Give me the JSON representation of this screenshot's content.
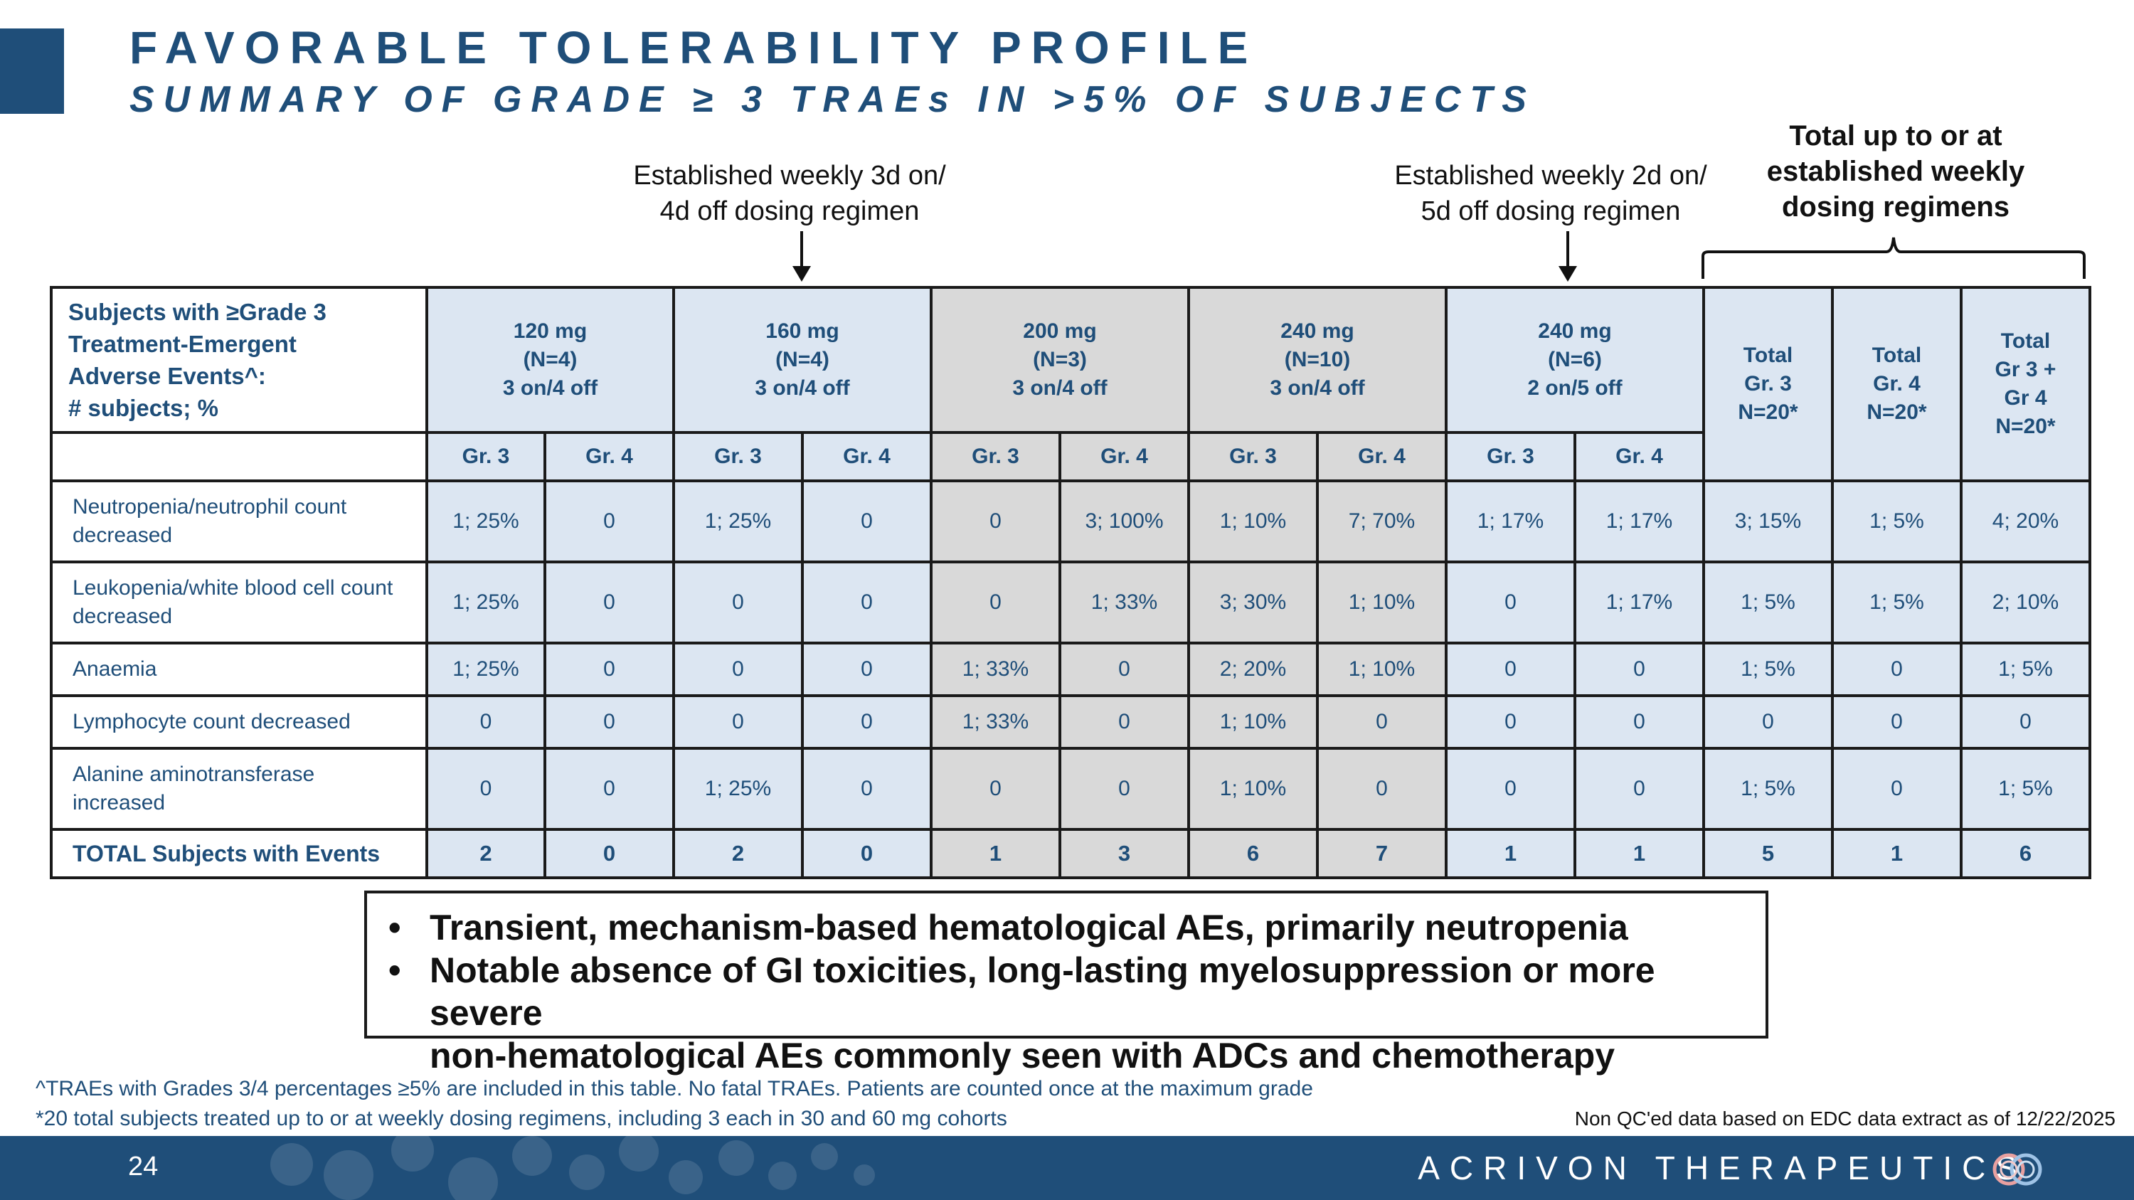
{
  "header": {
    "title": "FAVORABLE TOLERABILITY PROFILE",
    "subtitle": "SUMMARY OF GRADE ≥ 3 TRAEs IN >5% OF SUBJECTS"
  },
  "callouts": {
    "left": "Established weekly 3d on/\n4d off dosing regimen",
    "right": "Established weekly 2d on/\n5d off dosing regimen",
    "total": "Total up to or at\nestablished weekly\ndosing regimens"
  },
  "table": {
    "corner_header": "Subjects with ≥Grade 3\nTreatment-Emergent\nAdverse Events^:\n# subjects; %",
    "dose_groups": [
      {
        "label": "120 mg\n(N=4)\n3 on/4 off",
        "shade": "blue"
      },
      {
        "label": "160 mg\n(N=4)\n3 on/4 off",
        "shade": "blue"
      },
      {
        "label": "200 mg\n(N=3)\n3 on/4 off",
        "shade": "grey"
      },
      {
        "label": "240 mg\n(N=10)\n3 on/4 off",
        "shade": "grey"
      },
      {
        "label": "240 mg\n(N=6)\n2 on/5 off",
        "shade": "blue"
      }
    ],
    "total_headers": [
      "Total\nGr. 3\nN=20*",
      "Total\nGr. 4\nN=20*",
      "Total\nGr 3 +\nGr 4\nN=20*"
    ],
    "grade_labels": [
      "Gr. 3",
      "Gr. 4"
    ],
    "rows": [
      {
        "label": "Neutropenia/neutrophil count\ndecreased",
        "values": [
          "1; 25%",
          "0",
          "1; 25%",
          "0",
          "0",
          "3; 100%",
          "1; 10%",
          "7; 70%",
          "1; 17%",
          "1; 17%",
          "3; 15%",
          "1; 5%",
          "4; 20%"
        ]
      },
      {
        "label": "Leukopenia/white blood cell count\ndecreased",
        "values": [
          "1; 25%",
          "0",
          "0",
          "0",
          "0",
          "1; 33%",
          "3; 30%",
          "1; 10%",
          "0",
          "1; 17%",
          "1; 5%",
          "1; 5%",
          "2; 10%"
        ]
      },
      {
        "label": "Anaemia",
        "values": [
          "1; 25%",
          "0",
          "0",
          "0",
          "1; 33%",
          "0",
          "2; 20%",
          "1; 10%",
          "0",
          "0",
          "1; 5%",
          "0",
          "1; 5%"
        ]
      },
      {
        "label": "Lymphocyte count decreased",
        "values": [
          "0",
          "0",
          "0",
          "0",
          "1; 33%",
          "0",
          "1; 10%",
          "0",
          "0",
          "0",
          "0",
          "0",
          "0"
        ]
      },
      {
        "label": "Alanine aminotransferase\nincreased",
        "values": [
          "0",
          "0",
          "1; 25%",
          "0",
          "0",
          "0",
          "1; 10%",
          "0",
          "0",
          "0",
          "1; 5%",
          "0",
          "1; 5%"
        ]
      }
    ],
    "total_row": {
      "label": "TOTAL Subjects with Events",
      "values": [
        "2",
        "0",
        "2",
        "0",
        "1",
        "3",
        "6",
        "7",
        "1",
        "1",
        "5",
        "1",
        "6"
      ]
    }
  },
  "key_points": [
    "Transient, mechanism-based hematological AEs, primarily neutropenia",
    "Notable absence of GI toxicities, long-lasting myelosuppression or more severe\nnon-hematological AEs commonly seen with ADCs and chemotherapy"
  ],
  "bullet_glyph": "•",
  "footnotes": {
    "caret": "^TRAEs with Grades 3/4 percentages ≥5% are included in this table. No fatal TRAEs. Patients are counted once at the maximum grade",
    "star": "*20 total subjects treated up to or at weekly dosing regimens, including 3 each in 30 and 60 mg cohorts",
    "data_note": "Non QC'ed data based on EDC data extract as of 12/22/2025"
  },
  "footer": {
    "page_number": "24",
    "brand": "ACRIVON THERAPEUTICS"
  },
  "colors": {
    "navy": "#1f4e79",
    "light_blue": "#dce6f2",
    "grey": "#d9d9d9"
  }
}
